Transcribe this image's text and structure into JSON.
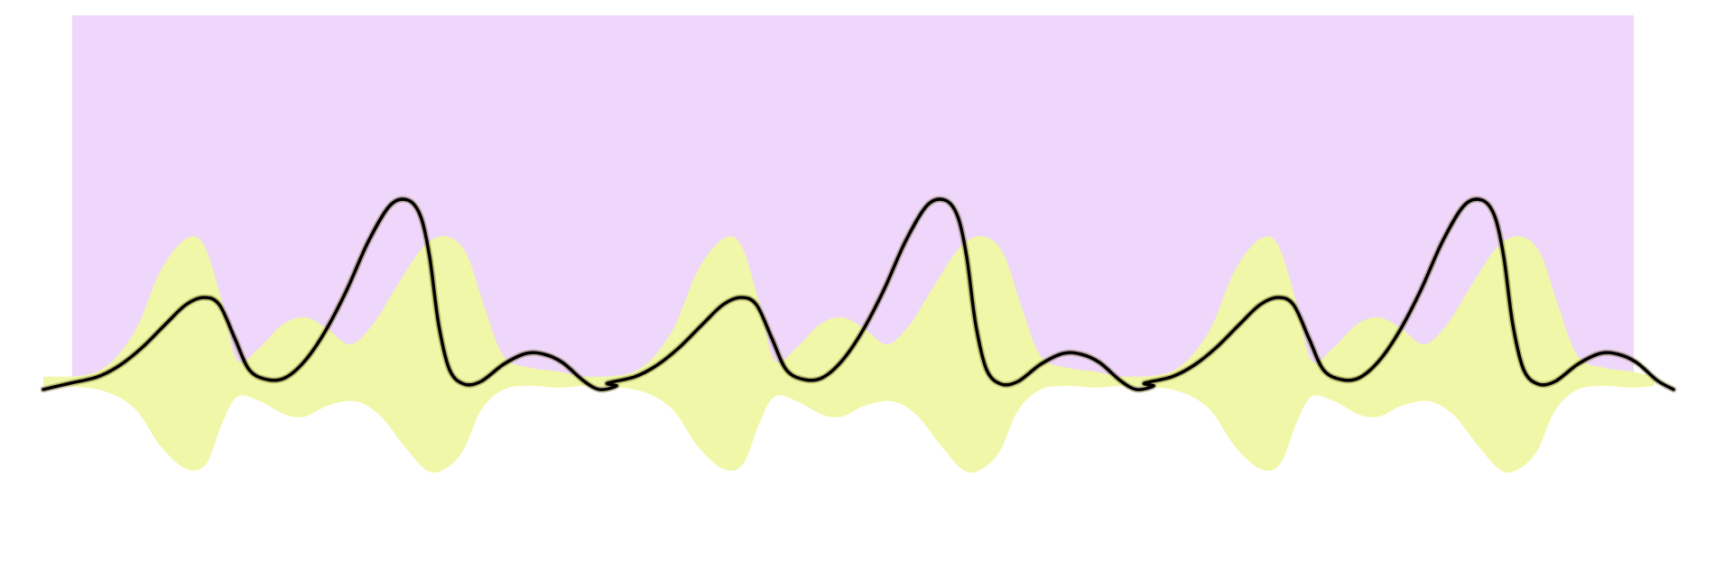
{
  "colors": {
    "background": "#ffffff",
    "panel": "#efd6fb",
    "envelope": "#f1f7a8",
    "trace": "#000000",
    "trace_glow": "#5a4a00"
  },
  "pattern": {
    "repeat_count": 3
  }
}
